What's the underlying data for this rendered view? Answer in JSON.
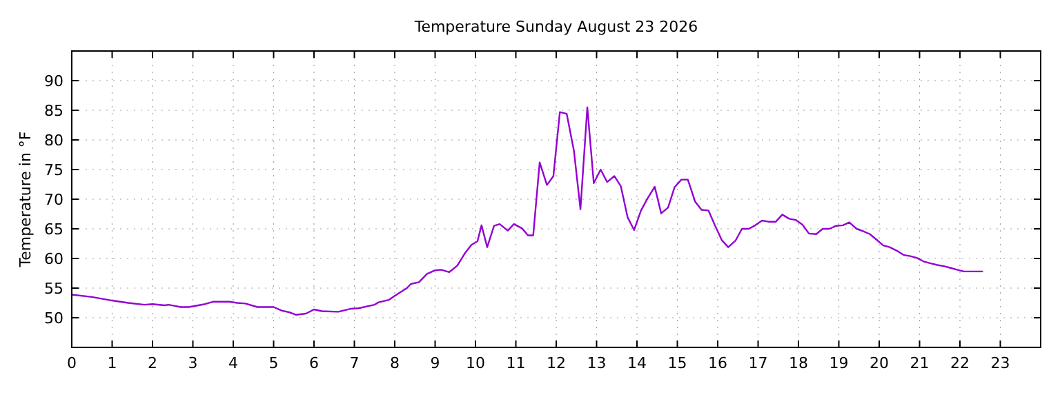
{
  "chart_data": {
    "type": "line",
    "title": "Temperature Sunday August 23 2026",
    "ylabel": "Temperature in °F",
    "xlim": [
      0,
      24
    ],
    "xticks": [
      0,
      1,
      2,
      3,
      4,
      5,
      6,
      7,
      8,
      9,
      10,
      11,
      12,
      13,
      14,
      15,
      16,
      17,
      18,
      19,
      20,
      21,
      22,
      23
    ],
    "ylim": [
      45,
      95
    ],
    "yticks": [
      50,
      55,
      60,
      65,
      70,
      75,
      80,
      85,
      90
    ],
    "grid": true,
    "marker": "none",
    "line_style": "solid",
    "series": [
      {
        "color": "#9400d3",
        "x": [
          0,
          0.5,
          1,
          1.4,
          1.8,
          2,
          2.3,
          2.4,
          2.7,
          2.9,
          3.3,
          3.5,
          3.9,
          4.1,
          4.3,
          4.6,
          5,
          5.2,
          5.4,
          5.55,
          5.8,
          6,
          6.2,
          6.6,
          6.9,
          7.1,
          7.5,
          7.6,
          7.85,
          8,
          8.3,
          8.4,
          8.6,
          8.8,
          9,
          9.15,
          9.35,
          9.55,
          9.75,
          9.9,
          10.05,
          10.15,
          10.29,
          10.46,
          10.6,
          10.8,
          10.95,
          11.15,
          11.3,
          11.43,
          11.59,
          11.77,
          11.93,
          12.09,
          12.26,
          12.44,
          12.6,
          12.77,
          12.93,
          13.1,
          13.26,
          13.44,
          13.6,
          13.77,
          13.93,
          14.1,
          14.26,
          14.44,
          14.6,
          14.77,
          14.93,
          15.1,
          15.26,
          15.44,
          15.6,
          15.77,
          15.93,
          16.1,
          16.26,
          16.44,
          16.6,
          16.77,
          16.93,
          17.1,
          17.26,
          17.44,
          17.6,
          17.77,
          17.93,
          18.1,
          18.26,
          18.44,
          18.6,
          18.77,
          18.93,
          19.1,
          19.26,
          19.44,
          19.6,
          19.77,
          19.93,
          20.1,
          20.26,
          20.44,
          20.6,
          20.77,
          20.93,
          21.1,
          21.26,
          21.44,
          21.6,
          21.77,
          21.93,
          22.1,
          22.57
        ],
        "values": [
          53.9,
          53.5,
          52.9,
          52.5,
          52.2,
          52.3,
          52.1,
          52.2,
          51.8,
          51.8,
          52.3,
          52.7,
          52.7,
          52.5,
          52.4,
          51.8,
          51.8,
          51.2,
          50.9,
          50.5,
          50.7,
          51.4,
          51.1,
          51,
          51.5,
          51.6,
          52.2,
          52.6,
          53,
          53.7,
          55,
          55.7,
          56,
          57.4,
          58,
          58.1,
          57.7,
          58.8,
          61,
          62.3,
          62.9,
          65.6,
          61.9,
          65.5,
          65.8,
          64.7,
          65.8,
          65.1,
          63.9,
          63.9,
          76.2,
          72.4,
          73.9,
          84.7,
          84.4,
          78.1,
          68.3,
          85.5,
          72.7,
          75,
          72.9,
          73.9,
          72.2,
          66.9,
          64.8,
          68.1,
          70.1,
          72.1,
          67.6,
          68.6,
          72,
          73.3,
          73.3,
          69.6,
          68.2,
          68.1,
          65.6,
          63.1,
          61.9,
          63,
          65,
          65,
          65.6,
          66.4,
          66.2,
          66.2,
          67.4,
          66.7,
          66.5,
          65.7,
          64.2,
          64.1,
          65,
          65,
          65.5,
          65.6,
          66.1,
          65,
          64.6,
          64.1,
          63.2,
          62.2,
          61.9,
          61.3,
          60.6,
          60.4,
          60.1,
          59.5,
          59.2,
          58.9,
          58.7,
          58.4,
          58.1,
          57.8,
          57.8
        ]
      }
    ]
  }
}
